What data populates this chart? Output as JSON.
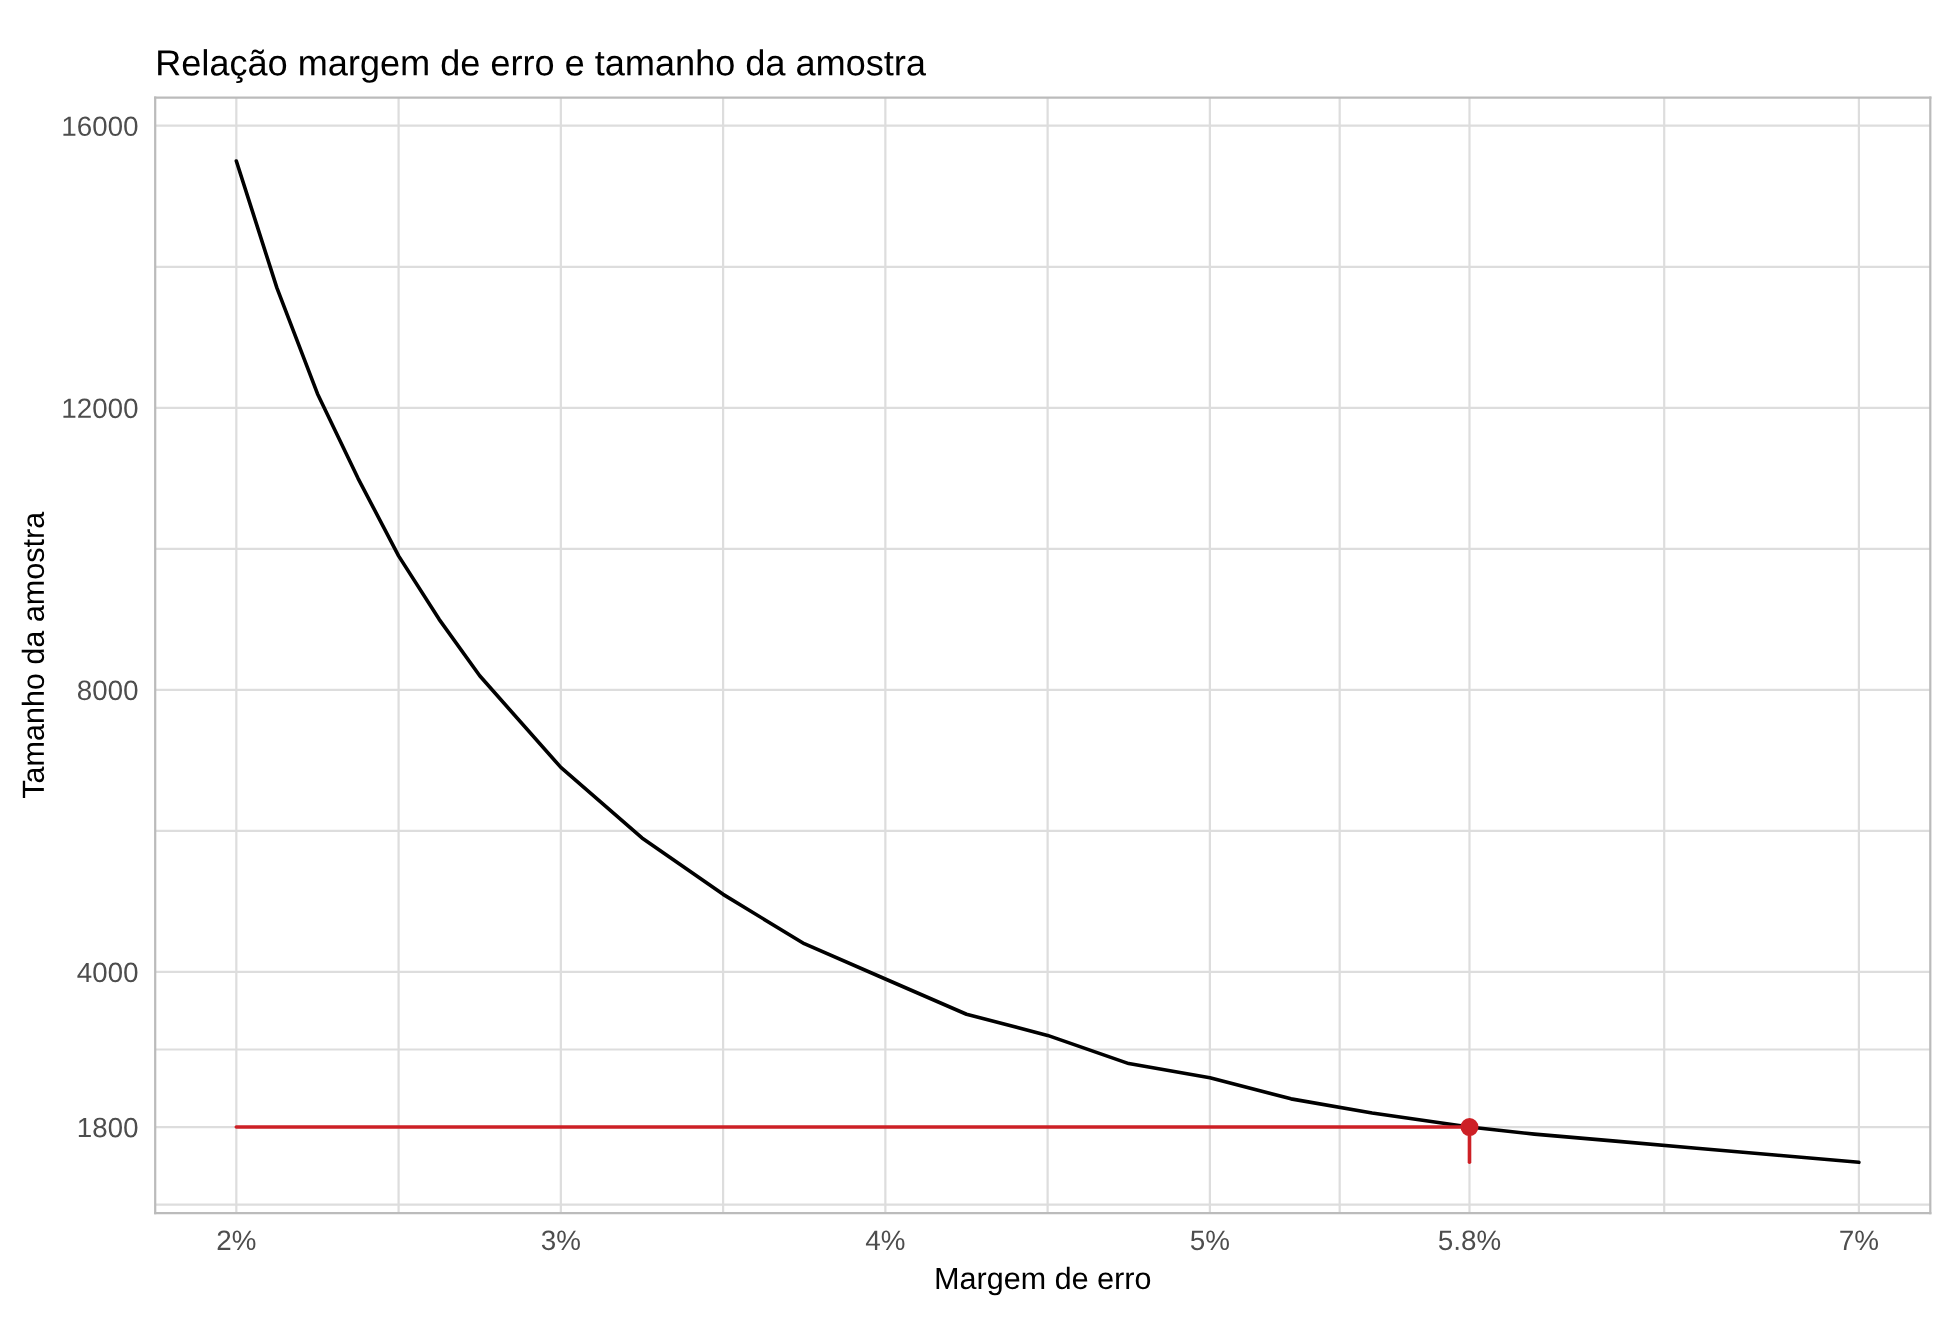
{
  "chart_data": {
    "type": "line",
    "title": "Relação margem de erro e tamanho da amostra",
    "xlabel": "Margem de erro",
    "ylabel": "Tamanho da amostra",
    "xlim": [
      1.75,
      7.22
    ],
    "ylim": [
      580,
      16400
    ],
    "xticks": [
      {
        "value": 2,
        "label": "2%"
      },
      {
        "value": 2.5,
        "label": null
      },
      {
        "value": 3,
        "label": "3%"
      },
      {
        "value": 3.5,
        "label": null
      },
      {
        "value": 4,
        "label": "4%"
      },
      {
        "value": 4.5,
        "label": null
      },
      {
        "value": 5,
        "label": "5%"
      },
      {
        "value": 5.4,
        "label": null
      },
      {
        "value": 5.8,
        "label": "5.8%"
      },
      {
        "value": 6.4,
        "label": null
      },
      {
        "value": 7,
        "label": "7%"
      }
    ],
    "yticks": [
      {
        "value": 700,
        "label": null
      },
      1800,
      {
        "value": 2900,
        "label": null
      },
      4000,
      {
        "value": 6000,
        "label": null
      },
      8000,
      {
        "value": 10000,
        "label": null
      },
      12000,
      {
        "value": 14000,
        "label": null
      },
      16000
    ],
    "grid": true,
    "legend": false,
    "series": [
      {
        "color": "#000000",
        "x": [
          2,
          2.125,
          2.25,
          2.375,
          2.5,
          2.625,
          2.75,
          3,
          3.25,
          3.5,
          3.75,
          4,
          4.25,
          4.5,
          4.75,
          5,
          5.25,
          5.5,
          5.8,
          6,
          6.25,
          6.5,
          6.75,
          7
        ],
        "values": [
          15500,
          13700,
          12200,
          11000,
          9900,
          9000,
          8200,
          6900,
          5900,
          5100,
          4400,
          3900,
          3400,
          3100,
          2700,
          2500,
          2200,
          2000,
          1800,
          1700,
          1600,
          1500,
          1400,
          1300
        ]
      },
      {
        "color": "#cd2026",
        "x": [
          2,
          5.8
        ],
        "values": [
          1800,
          1800
        ]
      },
      {
        "color": "#cd2026",
        "x": [
          5.8,
          5.8
        ],
        "values": [
          1800,
          1300
        ]
      },
      {
        "type": "scatter",
        "color": "#cd2026",
        "x": [
          5.8
        ],
        "values": [
          1800
        ]
      }
    ]
  }
}
